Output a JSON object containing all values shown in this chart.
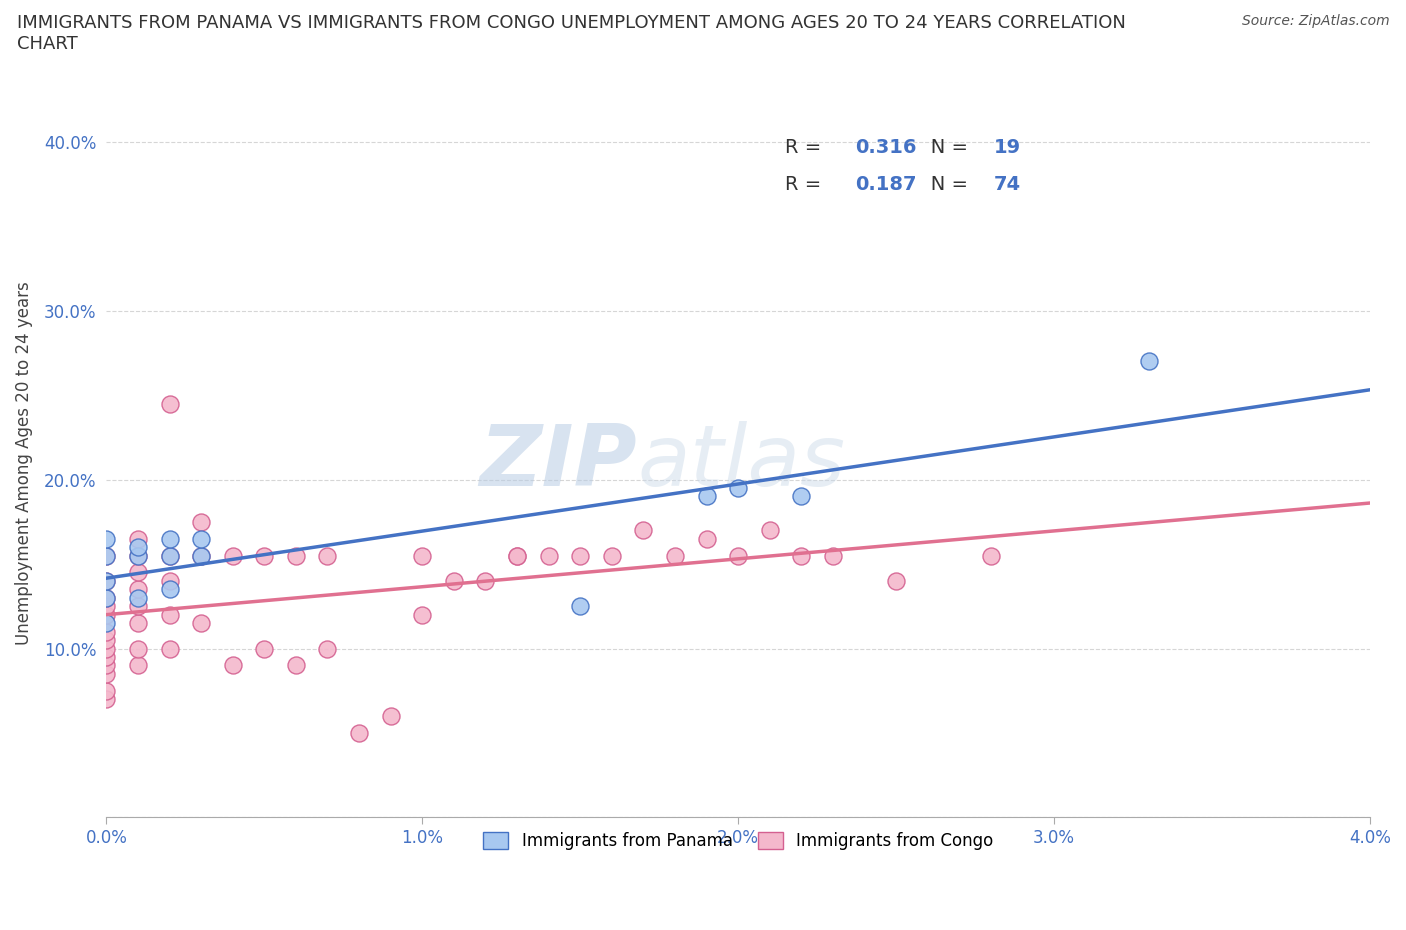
{
  "title": "IMMIGRANTS FROM PANAMA VS IMMIGRANTS FROM CONGO UNEMPLOYMENT AMONG AGES 20 TO 24 YEARS CORRELATION\nCHART",
  "source_text": "Source: ZipAtlas.com",
  "ylabel": "Unemployment Among Ages 20 to 24 years",
  "xlim": [
    0.0,
    0.04
  ],
  "ylim": [
    0.0,
    0.42
  ],
  "xticks": [
    0.0,
    0.01,
    0.02,
    0.03,
    0.04
  ],
  "xtick_labels": [
    "0.0%",
    "1.0%",
    "2.0%",
    "3.0%",
    "4.0%"
  ],
  "yticks": [
    0.0,
    0.1,
    0.2,
    0.3,
    0.4
  ],
  "ytick_labels": [
    "",
    "10.0%",
    "20.0%",
    "30.0%",
    "40.0%"
  ],
  "panama_color": "#a8c8f0",
  "panama_edge_color": "#4472c4",
  "congo_color": "#f4b8cc",
  "congo_edge_color": "#d46090",
  "line_panama_color": "#4472c4",
  "line_congo_color": "#e07090",
  "legend_R_panama": "0.316",
  "legend_N_panama": "19",
  "legend_R_congo": "0.187",
  "legend_N_congo": "74",
  "watermark_zip": "ZIP",
  "watermark_atlas": "atlas",
  "panama_x": [
    0.0,
    0.0,
    0.0,
    0.0,
    0.0,
    0.001,
    0.001,
    0.001,
    0.002,
    0.002,
    0.002,
    0.003,
    0.003,
    0.015,
    0.019,
    0.02,
    0.022,
    0.033
  ],
  "panama_y": [
    0.115,
    0.13,
    0.14,
    0.155,
    0.165,
    0.13,
    0.155,
    0.16,
    0.135,
    0.155,
    0.165,
    0.155,
    0.165,
    0.125,
    0.19,
    0.195,
    0.19,
    0.27
  ],
  "congo_x": [
    0.0,
    0.0,
    0.0,
    0.0,
    0.0,
    0.0,
    0.0,
    0.0,
    0.0,
    0.0,
    0.0,
    0.0,
    0.0,
    0.001,
    0.001,
    0.001,
    0.001,
    0.001,
    0.001,
    0.001,
    0.001,
    0.002,
    0.002,
    0.002,
    0.002,
    0.002,
    0.003,
    0.003,
    0.003,
    0.004,
    0.004,
    0.005,
    0.005,
    0.006,
    0.006,
    0.007,
    0.007,
    0.008,
    0.009,
    0.01,
    0.01,
    0.011,
    0.012,
    0.013,
    0.013,
    0.014,
    0.015,
    0.016,
    0.017,
    0.018,
    0.019,
    0.02,
    0.021,
    0.022,
    0.023,
    0.025,
    0.028
  ],
  "congo_y": [
    0.07,
    0.075,
    0.085,
    0.09,
    0.095,
    0.1,
    0.105,
    0.11,
    0.12,
    0.125,
    0.13,
    0.14,
    0.155,
    0.09,
    0.1,
    0.115,
    0.125,
    0.135,
    0.145,
    0.155,
    0.165,
    0.1,
    0.12,
    0.14,
    0.155,
    0.245,
    0.115,
    0.155,
    0.175,
    0.09,
    0.155,
    0.1,
    0.155,
    0.09,
    0.155,
    0.1,
    0.155,
    0.05,
    0.06,
    0.12,
    0.155,
    0.14,
    0.14,
    0.155,
    0.155,
    0.155,
    0.155,
    0.155,
    0.17,
    0.155,
    0.165,
    0.155,
    0.17,
    0.155,
    0.155,
    0.14,
    0.155
  ]
}
